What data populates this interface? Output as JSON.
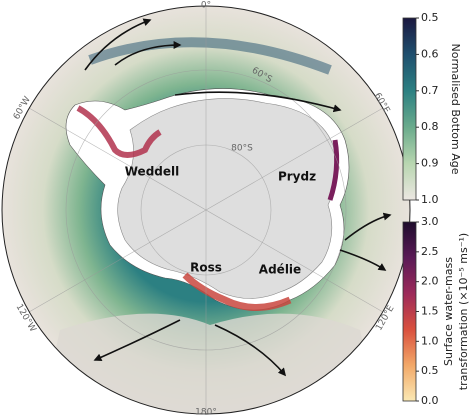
{
  "map": {
    "regions": [
      "Weddell",
      "Prydz",
      "Ross",
      "Adélie"
    ],
    "longitudes": [
      "0°",
      "60°E",
      "120°E",
      "180°",
      "120°W",
      "60°W"
    ],
    "latitudes": [
      "60°S",
      "80°S"
    ]
  },
  "colorbars": [
    {
      "label": "Normalised Bottom Age",
      "lim": [
        0.5,
        1.0
      ],
      "ticks": [
        0.5,
        0.6,
        0.7,
        0.8,
        0.9,
        {
          "value": 1.0,
          "label": "1.0"
        }
      ],
      "colors": [
        "#1b1840",
        "#1f4f6e",
        "#2c8082",
        "#6aab8c",
        "#b8d6b0",
        "#ece7e2"
      ]
    },
    {
      "label_lines": [
        "Surface water-mass",
        "transformation (×10⁻⁵ ms⁻¹)"
      ],
      "lim": [
        0.0,
        3.0
      ],
      "ticks": [
        {
          "value": 0.0,
          "label": "0.0"
        },
        0.5,
        {
          "value": 1.0,
          "label": "1.0"
        },
        1.5,
        {
          "value": 2.0,
          "label": "2.0"
        },
        2.5,
        {
          "value": 3.0,
          "label": "3.0"
        }
      ],
      "colors": [
        "#fbe9b4",
        "#f2a868",
        "#d9503e",
        "#9c2a5a",
        "#5a1a56",
        "#1e0c2c"
      ]
    }
  ]
}
